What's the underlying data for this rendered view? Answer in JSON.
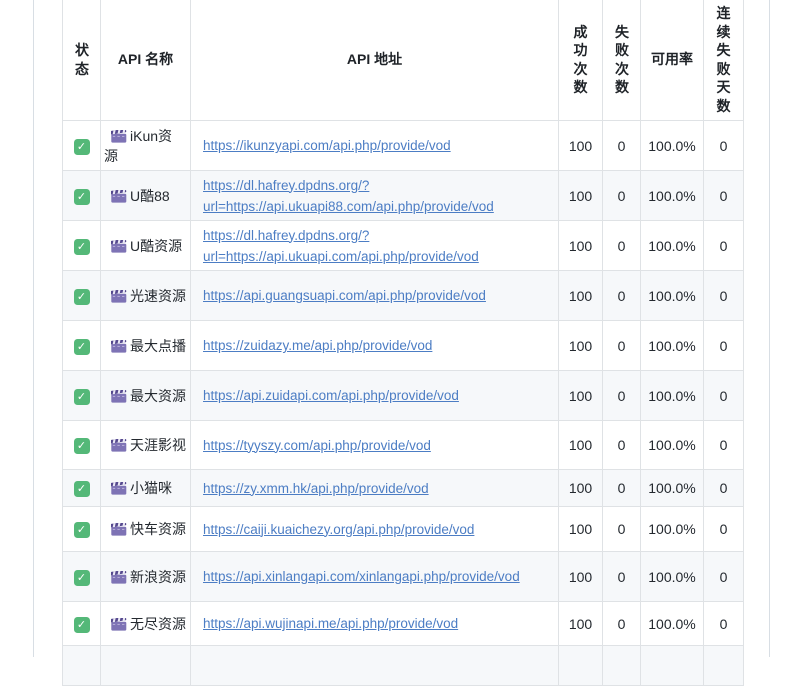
{
  "page": {
    "background": "#ffffff",
    "frame_border_color": "#d8dee4"
  },
  "colors": {
    "link_blue": "#4c7dc4",
    "row_alt_background": "#f6f8fa",
    "cell_border": "#dfe2e5",
    "text": "#24292f",
    "check_green": "#54b878",
    "clapperboard_purple": "#7e73b5",
    "clapperboard_dark_purple": "#55498e"
  },
  "icons": {
    "status_checked": "check-emoji",
    "name_prefix": "clapperboard-emoji",
    "check_glyph": "✓"
  },
  "table": {
    "columns": [
      {
        "key": "status",
        "label": "状态"
      },
      {
        "key": "name",
        "label": "API 名称"
      },
      {
        "key": "url",
        "label": "API 地址"
      },
      {
        "key": "success",
        "label": "成功次数"
      },
      {
        "key": "fail",
        "label": "失败次数"
      },
      {
        "key": "availability",
        "label": "可用率"
      },
      {
        "key": "consecutive_fail_days",
        "label": "连续失败天数"
      }
    ],
    "rows": [
      {
        "status": "checked",
        "name": "iKun资源",
        "url": "https://ikunzyapi.com/api.php/provide/vod",
        "success": "100",
        "fail": "0",
        "availability": "100.0%",
        "consecutive_fail_days": "0"
      },
      {
        "status": "checked",
        "name": "U酷88",
        "url": "https://dl.hafrey.dpdns.org/?url=https://api.ukuapi88.com/api.php/provide/vod",
        "success": "100",
        "fail": "0",
        "availability": "100.0%",
        "consecutive_fail_days": "0"
      },
      {
        "status": "checked",
        "name": "U酷资源",
        "url": "https://dl.hafrey.dpdns.org/?url=https://api.ukuapi.com/api.php/provide/vod",
        "success": "100",
        "fail": "0",
        "availability": "100.0%",
        "consecutive_fail_days": "0"
      },
      {
        "status": "checked",
        "name": "光速资源",
        "url": "https://api.guangsuapi.com/api.php/provide/vod",
        "success": "100",
        "fail": "0",
        "availability": "100.0%",
        "consecutive_fail_days": "0"
      },
      {
        "status": "checked",
        "name": "最大点播",
        "url": "https://zuidazy.me/api.php/provide/vod",
        "success": "100",
        "fail": "0",
        "availability": "100.0%",
        "consecutive_fail_days": "0"
      },
      {
        "status": "checked",
        "name": "最大资源",
        "url": "https://api.zuidapi.com/api.php/provide/vod",
        "success": "100",
        "fail": "0",
        "availability": "100.0%",
        "consecutive_fail_days": "0"
      },
      {
        "status": "checked",
        "name": "天涯影视",
        "url": "https://tyyszy.com/api.php/provide/vod",
        "success": "100",
        "fail": "0",
        "availability": "100.0%",
        "consecutive_fail_days": "0"
      },
      {
        "status": "checked",
        "name": "小猫咪",
        "url": "https://zy.xmm.hk/api.php/provide/vod",
        "success": "100",
        "fail": "0",
        "availability": "100.0%",
        "consecutive_fail_days": "0"
      },
      {
        "status": "checked",
        "name": "快车资源",
        "url": "https://caiji.kuaichezy.org/api.php/provide/vod",
        "success": "100",
        "fail": "0",
        "availability": "100.0%",
        "consecutive_fail_days": "0"
      },
      {
        "status": "checked",
        "name": "新浪资源",
        "url": "https://api.xinlangapi.com/xinlangapi.php/provide/vod",
        "success": "100",
        "fail": "0",
        "availability": "100.0%",
        "consecutive_fail_days": "0"
      },
      {
        "status": "checked",
        "name": "无尽资源",
        "url": "https://api.wujinapi.me/api.php/provide/vod",
        "success": "100",
        "fail": "0",
        "availability": "100.0%",
        "consecutive_fail_days": "0"
      }
    ]
  }
}
